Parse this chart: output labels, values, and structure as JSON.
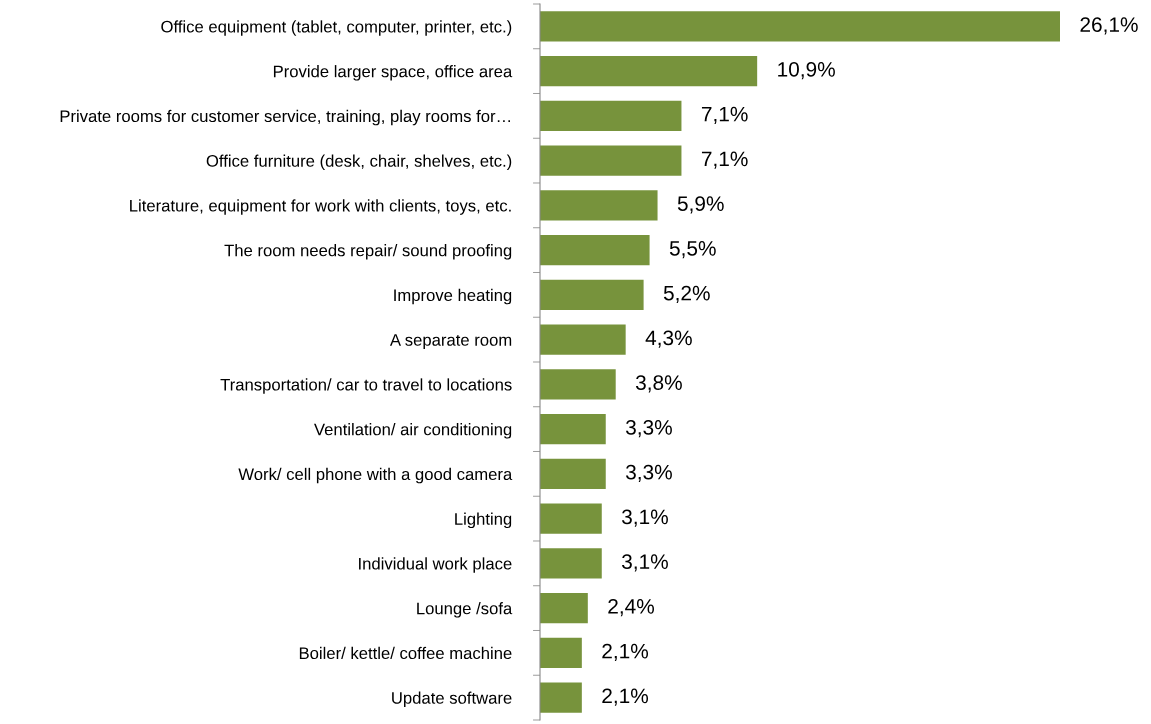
{
  "chart_data": {
    "type": "bar",
    "orientation": "horizontal",
    "color": "#77933c",
    "categories": [
      "Office equipment (tablet, computer, printer, etc.)",
      "Provide larger space, office area",
      "Private rooms for customer service, training, play rooms for…",
      "Office furniture (desk, chair, shelves, etc.)",
      "Literature, equipment for work with clients, toys, etc.",
      "The room needs repair/ sound proofing",
      "Improve heating",
      "A separate room",
      "Transportation/ car to travel to locations",
      "Ventilation/ air conditioning",
      "Work/ cell phone with a good camera",
      "Lighting",
      "Individual work place",
      "Lounge /sofa",
      "Boiler/ kettle/ coffee machine",
      "Update software"
    ],
    "values": [
      26.1,
      10.9,
      7.1,
      7.1,
      5.9,
      5.5,
      5.2,
      4.3,
      3.8,
      3.3,
      3.3,
      3.1,
      3.1,
      2.4,
      2.1,
      2.1
    ],
    "value_labels": [
      "26,1%",
      "10,9%",
      "7,1%",
      "7,1%",
      "5,9%",
      "5,5%",
      "5,2%",
      "4,3%",
      "3,8%",
      "3,3%",
      "3,3%",
      "3,1%",
      "3,1%",
      "2,4%",
      "2,1%",
      "2,1%"
    ],
    "grid": false,
    "legend": false
  }
}
